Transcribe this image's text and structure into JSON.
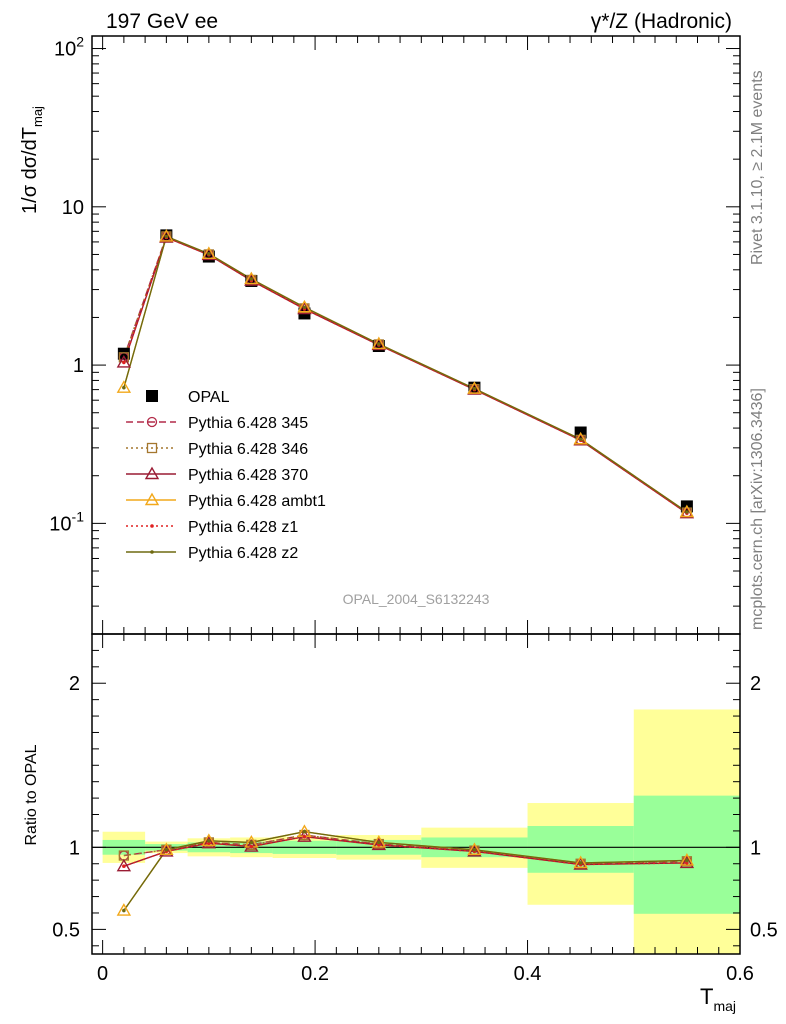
{
  "header": {
    "left_title": "197 GeV ee",
    "right_title": "γ*/Z (Hadronic)"
  },
  "side_labels": {
    "rivet": "Rivet 3.1.10, ≥ 2.1M events",
    "mcplots": "mcplots.cern.ch [arXiv:1306.3436]"
  },
  "watermark": "OPAL_2004_S6132243",
  "chart_data": [
    {
      "type": "scatter",
      "panel": "main",
      "ylabel": "1/σ dσ/dT_maj",
      "yscale": "log",
      "ylim": [
        0.02,
        120
      ],
      "xlim": [
        -0.01,
        0.6
      ],
      "yticks": [
        0.1,
        1,
        10,
        100
      ],
      "ytick_labels": [
        "10^-1",
        "1",
        "10",
        "10^2"
      ],
      "x_bins": [
        [
          0.0,
          0.04
        ],
        [
          0.04,
          0.08
        ],
        [
          0.08,
          0.12
        ],
        [
          0.12,
          0.16
        ],
        [
          0.16,
          0.22
        ],
        [
          0.22,
          0.3
        ],
        [
          0.3,
          0.4
        ],
        [
          0.4,
          0.5
        ],
        [
          0.5,
          0.6
        ]
      ],
      "x": [
        0.02,
        0.06,
        0.1,
        0.14,
        0.19,
        0.26,
        0.35,
        0.45,
        0.55
      ],
      "legend_position": "left-middle",
      "series": [
        {
          "name": "OPAL",
          "marker": "square",
          "color": "#000000",
          "line": "none",
          "values": [
            1.18,
            6.6,
            4.85,
            3.4,
            2.12,
            1.32,
            0.72,
            0.375,
            0.128
          ]
        },
        {
          "name": "Pythia 6.428 345",
          "marker": "circle",
          "color": "#b22a48",
          "line": "dashed",
          "values": [
            1.12,
            6.5,
            5.0,
            3.45,
            2.28,
            1.35,
            0.705,
            0.337,
            0.117
          ]
        },
        {
          "name": "Pythia 6.428 346",
          "marker": "square-open",
          "color": "#a4772e",
          "line": "dotted",
          "values": [
            1.12,
            6.5,
            5.0,
            3.45,
            2.28,
            1.35,
            0.705,
            0.337,
            0.117
          ]
        },
        {
          "name": "Pythia 6.428 370",
          "marker": "triangle",
          "color": "#9a1c34",
          "line": "solid",
          "values": [
            1.04,
            6.4,
            4.97,
            3.42,
            2.26,
            1.34,
            0.7,
            0.335,
            0.116
          ]
        },
        {
          "name": "Pythia 6.428 ambt1",
          "marker": "triangle",
          "color": "#f2a81a",
          "line": "solid",
          "values": [
            0.72,
            6.5,
            5.05,
            3.5,
            2.32,
            1.36,
            0.71,
            0.34,
            0.118
          ]
        },
        {
          "name": "Pythia 6.428 z1",
          "marker": "dot",
          "color": "#e02020",
          "line": "dotted",
          "values": [
            1.04,
            6.4,
            4.97,
            3.42,
            2.26,
            1.34,
            0.7,
            0.335,
            0.116
          ]
        },
        {
          "name": "Pythia 6.428 z2",
          "marker": "dot",
          "color": "#6f6a10",
          "line": "solid",
          "values": [
            0.72,
            6.5,
            5.05,
            3.5,
            2.32,
            1.36,
            0.71,
            0.34,
            0.118
          ]
        }
      ]
    },
    {
      "type": "line",
      "panel": "ratio",
      "ylabel": "Ratio to OPAL",
      "xlabel": "T_maj",
      "ylim": [
        0.35,
        2.3
      ],
      "xlim": [
        -0.01,
        0.6
      ],
      "yticks": [
        0.5,
        1,
        2
      ],
      "ytick_labels": [
        "0.5",
        "1",
        "2"
      ],
      "xticks": [
        0,
        0.2,
        0.4,
        0.6
      ],
      "xtick_labels": [
        "0",
        "0.2",
        "0.4",
        "0.6"
      ],
      "x": [
        0.02,
        0.06,
        0.1,
        0.14,
        0.19,
        0.26,
        0.35,
        0.45,
        0.55
      ],
      "band_green": [
        [
          0.955,
          1.045
        ],
        [
          0.98,
          1.02
        ],
        [
          0.97,
          1.03
        ],
        [
          0.965,
          1.035
        ],
        [
          0.96,
          1.04
        ],
        [
          0.955,
          1.045
        ],
        [
          0.94,
          1.06
        ],
        [
          0.845,
          1.13
        ],
        [
          0.595,
          1.315
        ]
      ],
      "band_yellow": [
        [
          0.905,
          1.095
        ],
        [
          0.965,
          1.035
        ],
        [
          0.945,
          1.055
        ],
        [
          0.94,
          1.06
        ],
        [
          0.935,
          1.065
        ],
        [
          0.925,
          1.075
        ],
        [
          0.875,
          1.12
        ],
        [
          0.65,
          1.27
        ],
        [
          0.35,
          1.84
        ]
      ],
      "series": [
        {
          "name": "Pythia 6.428 345",
          "marker": "circle",
          "color": "#b22a48",
          "line": "dashed",
          "values": [
            0.95,
            0.985,
            1.03,
            1.015,
            1.075,
            1.02,
            0.98,
            0.9,
            0.915
          ]
        },
        {
          "name": "Pythia 6.428 346",
          "marker": "square-open",
          "color": "#a4772e",
          "line": "dotted",
          "values": [
            0.95,
            0.985,
            1.03,
            1.015,
            1.075,
            1.02,
            0.98,
            0.9,
            0.915
          ]
        },
        {
          "name": "Pythia 6.428 370",
          "marker": "triangle",
          "color": "#9a1c34",
          "line": "solid",
          "values": [
            0.885,
            0.975,
            1.025,
            1.005,
            1.065,
            1.015,
            0.975,
            0.895,
            0.905
          ]
        },
        {
          "name": "Pythia 6.428 ambt1",
          "marker": "triangle",
          "color": "#f2a81a",
          "line": "solid",
          "values": [
            0.615,
            0.985,
            1.04,
            1.03,
            1.095,
            1.03,
            0.985,
            0.905,
            0.92
          ]
        },
        {
          "name": "Pythia 6.428 z1",
          "marker": "dot",
          "color": "#e02020",
          "line": "dotted",
          "values": [
            0.885,
            0.975,
            1.025,
            1.005,
            1.065,
            1.015,
            0.975,
            0.895,
            0.905
          ]
        },
        {
          "name": "Pythia 6.428 z2",
          "marker": "dot",
          "color": "#6f6a10",
          "line": "solid",
          "values": [
            0.615,
            0.985,
            1.04,
            1.03,
            1.095,
            1.03,
            0.985,
            0.905,
            0.92
          ]
        }
      ]
    }
  ]
}
